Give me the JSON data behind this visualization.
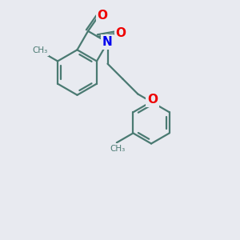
{
  "bg_color": "#e8eaf0",
  "bond_color": "#4a7a72",
  "bond_width": 1.6,
  "N_color": "#0000ee",
  "O_color": "#ee0000",
  "figsize": [
    3.0,
    3.0
  ],
  "dpi": 100,
  "xlim": [
    0,
    10
  ],
  "ylim": [
    0,
    10
  ],
  "methyl_label": "CH₃",
  "N_label": "N",
  "O_label": "O"
}
